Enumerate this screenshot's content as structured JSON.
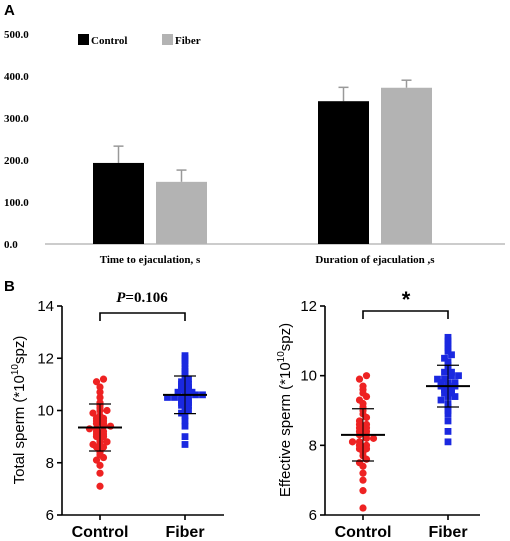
{
  "panel_labels": {
    "a": "A",
    "b": "B"
  },
  "colors": {
    "control_bar": "#000000",
    "fiber_bar": "#b3b3b3",
    "error_bar": "#999999",
    "control_dot": "#ee2222",
    "fiber_dot": "#1a28e0"
  },
  "chart_data": [
    {
      "type": "bar",
      "panel": "A",
      "categories": [
        "Time to ejaculation, s",
        "Duration of ejaculation ,s"
      ],
      "series": [
        {
          "name": "Control",
          "values": [
            193,
            340
          ],
          "errors": [
            40,
            33
          ]
        },
        {
          "name": "Fiber",
          "values": [
            148,
            372
          ],
          "errors": [
            28,
            18
          ]
        }
      ],
      "ylim": [
        0,
        500
      ],
      "yticks": [
        "0.0",
        "100.0",
        "200.0",
        "300.0",
        "400.0",
        "500.0"
      ],
      "xlabel": "",
      "ylabel": "",
      "legend": "top-left",
      "grid": false
    },
    {
      "type": "scatter",
      "panel": "B-left",
      "categories": [
        "Control",
        "Fiber"
      ],
      "ylabel": "Total sperm (*10^10spz)",
      "ylabel_main": "Total sperm (*10",
      "ylabel_sup": "10",
      "ylabel_tail": "spz)",
      "ylim": [
        6,
        14
      ],
      "yticks": [
        "6",
        "8",
        "10",
        "12",
        "14"
      ],
      "annotation": "P=0.106",
      "annotation_italic": "P",
      "annotation_rest": "=0.106",
      "series": [
        {
          "name": "Control",
          "mean": 9.35,
          "sd": 0.9,
          "values": [
            7.1,
            7.6,
            7.9,
            8.1,
            8.2,
            8.3,
            8.4,
            8.5,
            8.6,
            8.6,
            8.7,
            8.8,
            8.8,
            8.9,
            9.0,
            9.0,
            9.1,
            9.1,
            9.2,
            9.2,
            9.3,
            9.3,
            9.4,
            9.4,
            9.5,
            9.5,
            9.6,
            9.6,
            9.7,
            9.7,
            9.8,
            9.9,
            10.0,
            10.0,
            10.1,
            10.2,
            10.3,
            10.5,
            10.7,
            10.9,
            11.1,
            11.2
          ]
        },
        {
          "name": "Fiber",
          "mean": 10.6,
          "sd": 0.72,
          "values": [
            8.7,
            9.0,
            9.4,
            9.6,
            9.8,
            9.9,
            10.0,
            10.1,
            10.2,
            10.2,
            10.3,
            10.3,
            10.4,
            10.4,
            10.5,
            10.5,
            10.5,
            10.6,
            10.6,
            10.6,
            10.7,
            10.7,
            10.7,
            10.8,
            10.8,
            10.9,
            10.9,
            11.0,
            11.0,
            11.1,
            11.2,
            11.3,
            11.4,
            11.5,
            11.6,
            11.8,
            11.9,
            12.0,
            12.1
          ]
        }
      ]
    },
    {
      "type": "scatter",
      "panel": "B-right",
      "categories": [
        "Control",
        "Fiber"
      ],
      "ylabel": "Effective sperm (*10^10spz)",
      "ylabel_main": "Effective sperm (*10",
      "ylabel_sup": "10",
      "ylabel_tail": "spz)",
      "ylim": [
        6,
        12
      ],
      "yticks": [
        "6",
        "8",
        "10",
        "12"
      ],
      "annotation": "*",
      "series": [
        {
          "name": "Control",
          "mean": 8.3,
          "sd": 0.75,
          "values": [
            6.2,
            6.7,
            7.0,
            7.2,
            7.4,
            7.5,
            7.6,
            7.7,
            7.8,
            7.9,
            7.9,
            8.0,
            8.0,
            8.1,
            8.1,
            8.2,
            8.2,
            8.3,
            8.3,
            8.4,
            8.4,
            8.5,
            8.5,
            8.6,
            8.6,
            8.7,
            8.8,
            8.9,
            9.0,
            9.1,
            9.2,
            9.3,
            9.4,
            9.5,
            9.6,
            9.7,
            9.9,
            10.0
          ]
        },
        {
          "name": "Fiber",
          "mean": 9.7,
          "sd": 0.6,
          "values": [
            8.1,
            8.4,
            8.7,
            8.9,
            9.0,
            9.1,
            9.2,
            9.3,
            9.4,
            9.4,
            9.5,
            9.5,
            9.6,
            9.6,
            9.7,
            9.7,
            9.7,
            9.8,
            9.8,
            9.8,
            9.9,
            9.9,
            10.0,
            10.0,
            10.1,
            10.1,
            10.2,
            10.3,
            10.4,
            10.5,
            10.6,
            10.7,
            10.8,
            10.9,
            11.0,
            11.1
          ]
        }
      ]
    }
  ]
}
